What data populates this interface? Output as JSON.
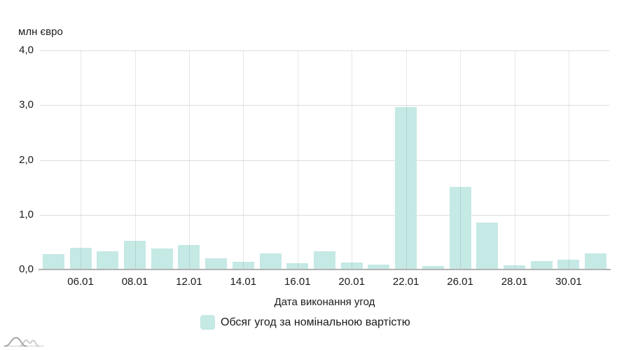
{
  "colors": {
    "bar": "#c5e9e5",
    "hgrid": "#dedede",
    "vgrid": "rgba(0,0,0,0.09)",
    "axis_line": "#b3b3b3",
    "text": "#1a1a1a",
    "background": "#ffffff"
  },
  "chart_data": {
    "type": "bar",
    "title": "",
    "ylabel": "млн євро",
    "xlabel": "Дата виконання угод",
    "ylim": [
      0,
      4
    ],
    "y_ticks": [
      "0,0",
      "1,0",
      "2,0",
      "3,0",
      "4,0"
    ],
    "grid": true,
    "bar_count": 21,
    "values": [
      0.28,
      0.39,
      0.33,
      0.52,
      0.38,
      0.45,
      0.2,
      0.14,
      0.29,
      0.12,
      0.33,
      0.13,
      0.09,
      2.97,
      0.06,
      1.51,
      0.86,
      0.08,
      0.15,
      0.18,
      0.3
    ],
    "x_tick_labels": [
      {
        "bar_index": 1,
        "label": "06.01"
      },
      {
        "bar_index": 3,
        "label": "08.01"
      },
      {
        "bar_index": 5,
        "label": "12.01"
      },
      {
        "bar_index": 7,
        "label": "14.01"
      },
      {
        "bar_index": 9,
        "label": "16.01"
      },
      {
        "bar_index": 11,
        "label": "20.01"
      },
      {
        "bar_index": 13,
        "label": "22.01"
      },
      {
        "bar_index": 15,
        "label": "26.01"
      },
      {
        "bar_index": 17,
        "label": "28.01"
      },
      {
        "bar_index": 19,
        "label": "30.01"
      }
    ],
    "legend": {
      "position": "bottom",
      "items": [
        {
          "label": "Обсяг угод за номінальною вартістю",
          "color": "#c5e9e5"
        }
      ]
    }
  }
}
